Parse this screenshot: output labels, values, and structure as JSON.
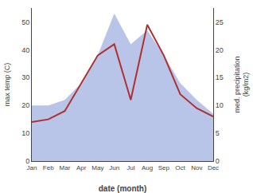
{
  "chart_data": {
    "type": "line",
    "categories": [
      "Jan",
      "Feb",
      "Mar",
      "Apr",
      "May",
      "Jun",
      "Jul",
      "Aug",
      "Sep",
      "Oct",
      "Nov",
      "Dec"
    ],
    "series": [
      {
        "type": "area",
        "color": "#b8c4e8",
        "values": [
          20,
          20,
          22,
          28,
          38,
          53,
          42,
          47,
          38,
          28,
          22,
          17
        ]
      },
      {
        "type": "line",
        "color": "#b03030",
        "axis": "y2",
        "values": [
          7,
          7.5,
          9,
          14,
          19,
          21,
          11,
          24.5,
          19,
          12,
          9.5,
          8
        ]
      }
    ],
    "xlabel": "date (month)",
    "ylabel": "max temp (C)",
    "y2label": "med. precipitation\n(kg/m2)",
    "ylim": [
      0,
      55
    ],
    "yticks": [
      0,
      10,
      20,
      30,
      40,
      50
    ],
    "y2lim": [
      0,
      27.5
    ],
    "y2ticks": [
      0,
      5,
      10,
      15,
      20,
      25
    ],
    "grid": false
  }
}
